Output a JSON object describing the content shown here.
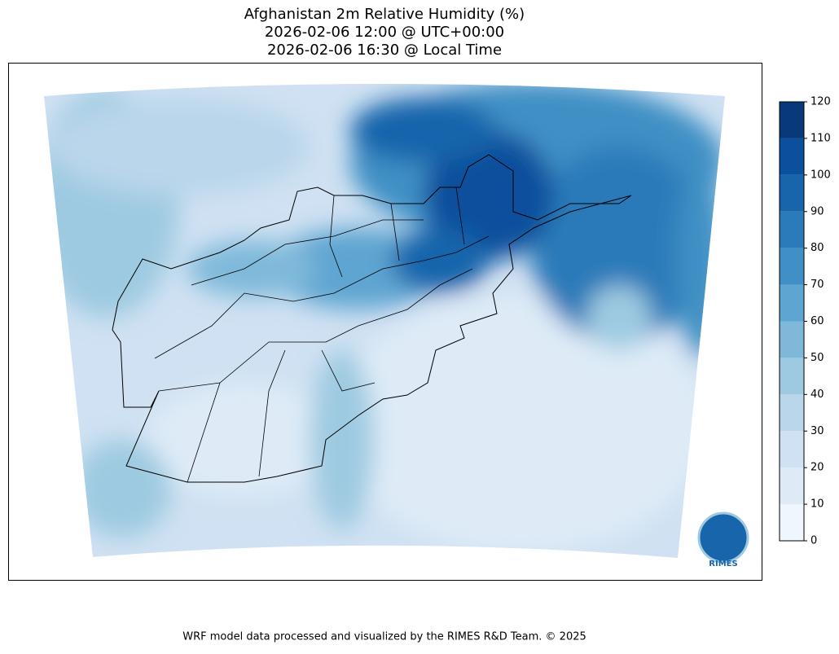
{
  "header": {
    "title_lines": [
      "Afghanistan 2m Relative Humidity (%)",
      "2026-02-06 12:00 @ UTC+00:00",
      "2026-02-06 16:30 @ Local Time"
    ]
  },
  "colorbar": {
    "ticks": [
      0,
      10,
      20,
      30,
      40,
      50,
      60,
      70,
      80,
      90,
      100,
      110,
      120
    ],
    "colors": [
      "#f0f6fd",
      "#deebf7",
      "#cfe1f2",
      "#bad6eb",
      "#9ecae1",
      "#7fb9da",
      "#5fa5d1",
      "#4190c5",
      "#2b7ab9",
      "#1865ac",
      "#0b509c",
      "#083a7a"
    ]
  },
  "logo": {
    "text": "RIMES"
  },
  "footer": {
    "text": "WRF model data processed and visualized by the RIMES R&D Team. © 2025"
  }
}
